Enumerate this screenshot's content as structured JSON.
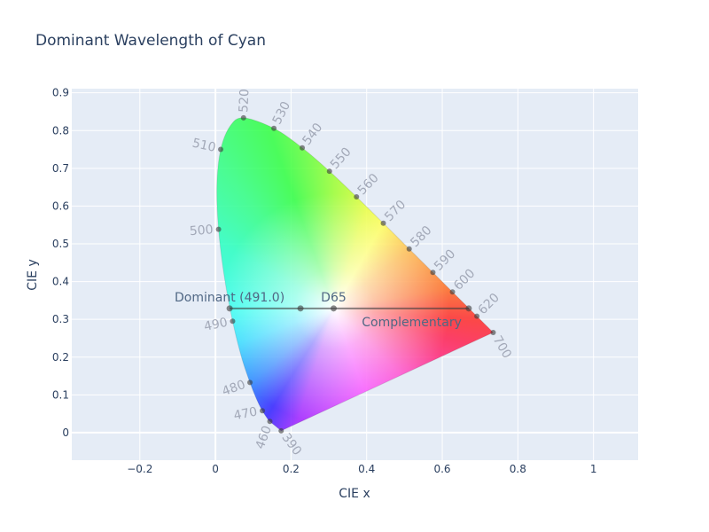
{
  "chart_data": {
    "type": "scatter",
    "title": "Dominant Wavelength of Cyan",
    "xlabel": "CIE x",
    "ylabel": "CIE y",
    "xlim": [
      -0.38,
      1.118
    ],
    "ylim": [
      -0.073,
      0.911
    ],
    "grid": true,
    "legend": "none",
    "x_ticks": [
      "−0.2",
      "0",
      "0.2",
      "0.4",
      "0.6",
      "0.8",
      "1"
    ],
    "x_tick_values": [
      -0.2,
      0,
      0.2,
      0.4,
      0.6,
      0.8,
      1
    ],
    "y_ticks": [
      "0",
      "0.1",
      "0.2",
      "0.3",
      "0.4",
      "0.5",
      "0.6",
      "0.7",
      "0.8",
      "0.9"
    ],
    "y_tick_values": [
      0,
      0.1,
      0.2,
      0.3,
      0.4,
      0.5,
      0.6,
      0.7,
      0.8,
      0.9
    ],
    "spectral_locus": [
      {
        "nm": 390,
        "x": 0.1738,
        "y": 0.0049,
        "label": "390"
      },
      {
        "nm": 460,
        "x": 0.144,
        "y": 0.0297,
        "label": "460"
      },
      {
        "nm": 465,
        "x": 0.1355,
        "y": 0.0399
      },
      {
        "nm": 470,
        "x": 0.1241,
        "y": 0.0578,
        "label": "470"
      },
      {
        "nm": 475,
        "x": 0.1096,
        "y": 0.0868
      },
      {
        "nm": 480,
        "x": 0.0913,
        "y": 0.1327,
        "label": "480"
      },
      {
        "nm": 485,
        "x": 0.0687,
        "y": 0.2007
      },
      {
        "nm": 490,
        "x": 0.0454,
        "y": 0.295,
        "label": "490"
      },
      {
        "nm": 495,
        "x": 0.0235,
        "y": 0.4127
      },
      {
        "nm": 500,
        "x": 0.0082,
        "y": 0.5384,
        "label": "500"
      },
      {
        "nm": 505,
        "x": 0.0039,
        "y": 0.6548
      },
      {
        "nm": 510,
        "x": 0.0139,
        "y": 0.7502,
        "label": "510"
      },
      {
        "nm": 515,
        "x": 0.0389,
        "y": 0.812
      },
      {
        "nm": 520,
        "x": 0.0743,
        "y": 0.8338,
        "label": "520"
      },
      {
        "nm": 530,
        "x": 0.1547,
        "y": 0.8059,
        "label": "530"
      },
      {
        "nm": 540,
        "x": 0.2296,
        "y": 0.7543,
        "label": "540"
      },
      {
        "nm": 550,
        "x": 0.3016,
        "y": 0.6923,
        "label": "550"
      },
      {
        "nm": 560,
        "x": 0.3731,
        "y": 0.6245,
        "label": "560"
      },
      {
        "nm": 570,
        "x": 0.4441,
        "y": 0.5547,
        "label": "570"
      },
      {
        "nm": 580,
        "x": 0.5125,
        "y": 0.4866,
        "label": "580"
      },
      {
        "nm": 590,
        "x": 0.5752,
        "y": 0.4242,
        "label": "590"
      },
      {
        "nm": 600,
        "x": 0.627,
        "y": 0.3725,
        "label": "600"
      },
      {
        "nm": 620,
        "x": 0.6915,
        "y": 0.3083,
        "label": "620"
      },
      {
        "nm": 700,
        "x": 0.7347,
        "y": 0.2653,
        "label": "700"
      }
    ],
    "dominant_line": [
      {
        "x": 0.0375,
        "y": 0.329,
        "label": "Dominant (491.0)"
      },
      {
        "x": 0.225,
        "y": 0.329,
        "label": ""
      },
      {
        "x": 0.3127,
        "y": 0.329,
        "label": "D65"
      },
      {
        "x": 0.67,
        "y": 0.329,
        "label": "Complementary"
      }
    ],
    "colors": {
      "plot_bg": "#e5ecf6",
      "grid": "#ffffff",
      "text": "#2a3f5f",
      "annotation": "#506784",
      "wavelength_label": "#a3a9b8",
      "marker": "#3c3c3c"
    }
  }
}
